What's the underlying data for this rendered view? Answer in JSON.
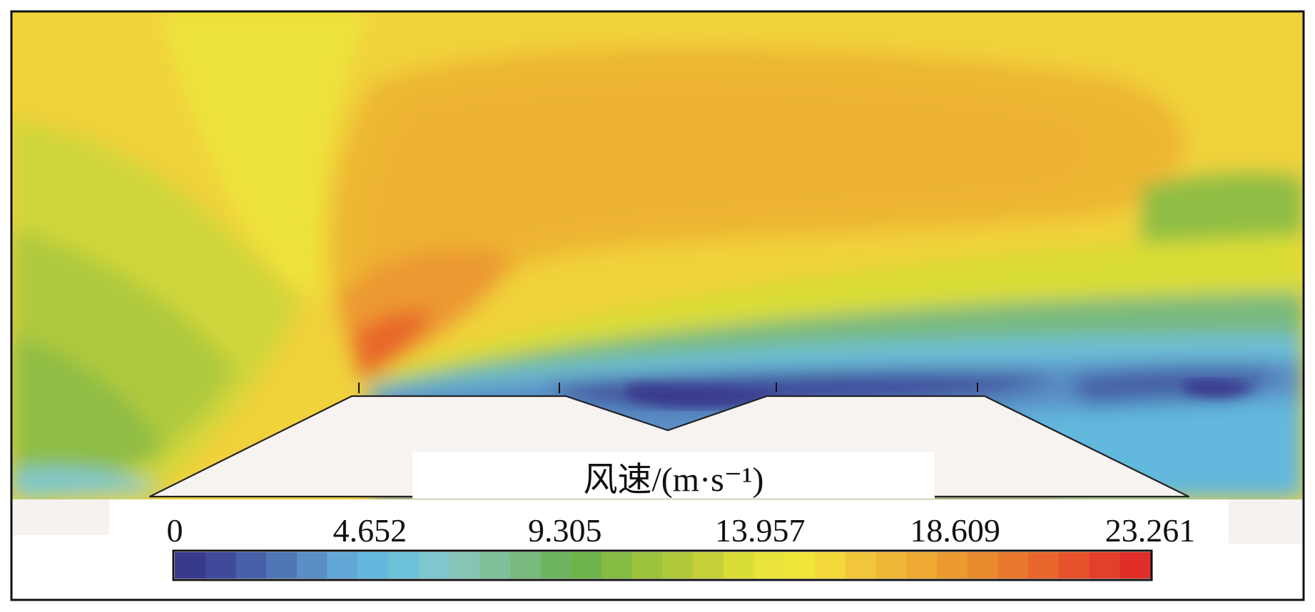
{
  "chart_data": {
    "type": "heatmap",
    "colorbar": {
      "title": "风速/(m·s⁻¹)",
      "ticks": [
        "0",
        "4.652",
        "9.305",
        "13.957",
        "18.609",
        "23.261"
      ],
      "tick_values": [
        0,
        4.652,
        9.305,
        13.957,
        18.609,
        23.261
      ],
      "range": [
        0,
        23.261
      ],
      "levels": 32,
      "colors": [
        "#3a3a8c",
        "#3f4a9a",
        "#4760a8",
        "#4f77b6",
        "#5a8fc6",
        "#62a8d6",
        "#62b8dd",
        "#6cc0d8",
        "#7ec7cf",
        "#86c4b5",
        "#7fbf9a",
        "#78b97e",
        "#6db45e",
        "#6fb44a",
        "#85bb42",
        "#9cc23e",
        "#b0c93a",
        "#c5d038",
        "#dadd36",
        "#eae33b",
        "#f0e63a",
        "#f2d83a",
        "#f2c63a",
        "#f0b838",
        "#eda933",
        "#ec9a30",
        "#ea8a2e",
        "#e9782c",
        "#e8662b",
        "#e6532a",
        "#e43f2a",
        "#e02e28"
      ]
    }
  }
}
